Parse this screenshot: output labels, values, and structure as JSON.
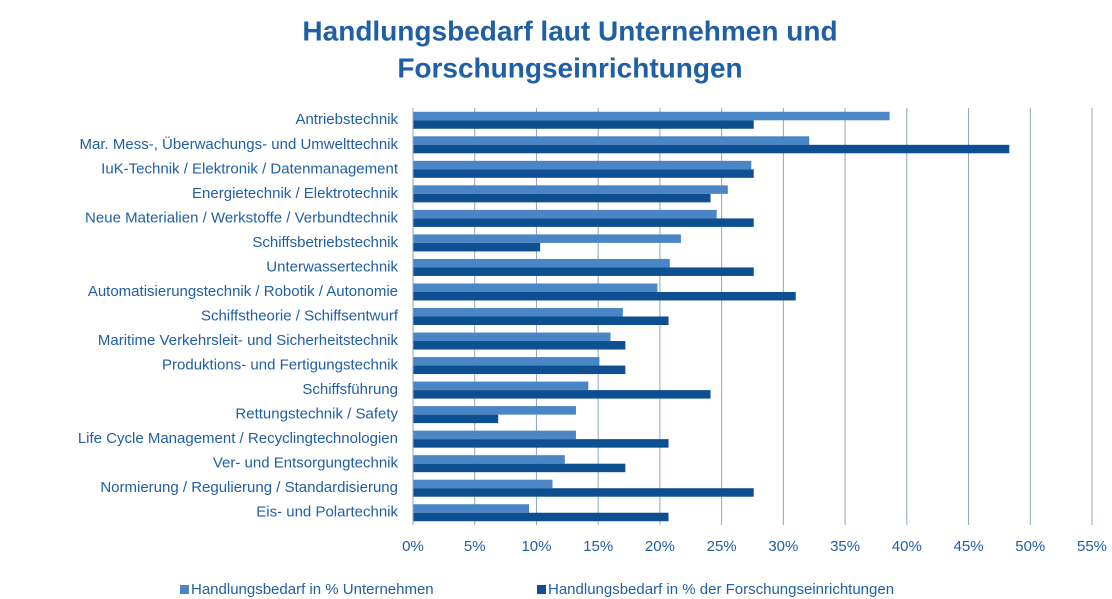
{
  "chart_data": {
    "type": "hbar",
    "title": [
      "Handlungsbedarf laut Unternehmen und",
      "Forschungseinrichtungen"
    ],
    "categories": [
      "Antriebstechnik",
      "Mar. Mess-, Überwachungs- und Umwelttechnik",
      "IuK-Technik / Elektronik / Datenmanagement",
      "Energietechnik / Elektrotechnik",
      "Neue Materialien / Werkstoffe / Verbundtechnik",
      "Schiffsbetriebstechnik",
      "Unterwassertechnik",
      "Automatisierungstechnik / Robotik / Autonomie",
      "Schiffstheorie / Schiffsentwurf",
      "Maritime Verkehrsleit- und Sicherheitstechnik",
      "Produktions- und Fertigungstechnik",
      "Schiffsführung",
      "Rettungstechnik / Safety",
      "Life Cycle Management / Recyclingtechnologien",
      "Ver- und Entsorgungtechnik",
      "Normierung / Regulierung / Standardisierung",
      "Eis- und Polartechnik"
    ],
    "series": [
      {
        "name": "Handlungsbedarf in % Unternehmen",
        "color": "#4a86c5",
        "values": [
          38.6,
          32.1,
          27.4,
          25.5,
          24.6,
          21.7,
          20.8,
          19.8,
          17.0,
          16.0,
          15.1,
          14.2,
          13.2,
          13.2,
          12.3,
          11.3,
          9.4
        ]
      },
      {
        "name": "Handlungsbedarf in % der Forschungseinrichtungen",
        "color": "#0d4f91",
        "values": [
          27.6,
          48.3,
          27.6,
          24.1,
          27.6,
          10.3,
          27.6,
          31.0,
          20.7,
          17.2,
          17.2,
          24.1,
          6.9,
          20.7,
          17.2,
          27.6,
          20.7
        ]
      }
    ],
    "xlim": [
      0,
      55
    ],
    "xticks": [
      {
        "value": 0,
        "label": "0%"
      },
      {
        "value": 5,
        "label": "5%"
      },
      {
        "value": 10,
        "label": "10%"
      },
      {
        "value": 15,
        "label": "15%"
      },
      {
        "value": 20,
        "label": "20%"
      },
      {
        "value": 25,
        "label": "25%"
      },
      {
        "value": 30,
        "label": "30%"
      },
      {
        "value": 35,
        "label": "35%"
      },
      {
        "value": 40,
        "label": "40%"
      },
      {
        "value": 45,
        "label": "45%"
      },
      {
        "value": 50,
        "label": "50%"
      },
      {
        "value": 55,
        "label": "55%"
      }
    ],
    "grid": true,
    "legend": "bottom"
  }
}
